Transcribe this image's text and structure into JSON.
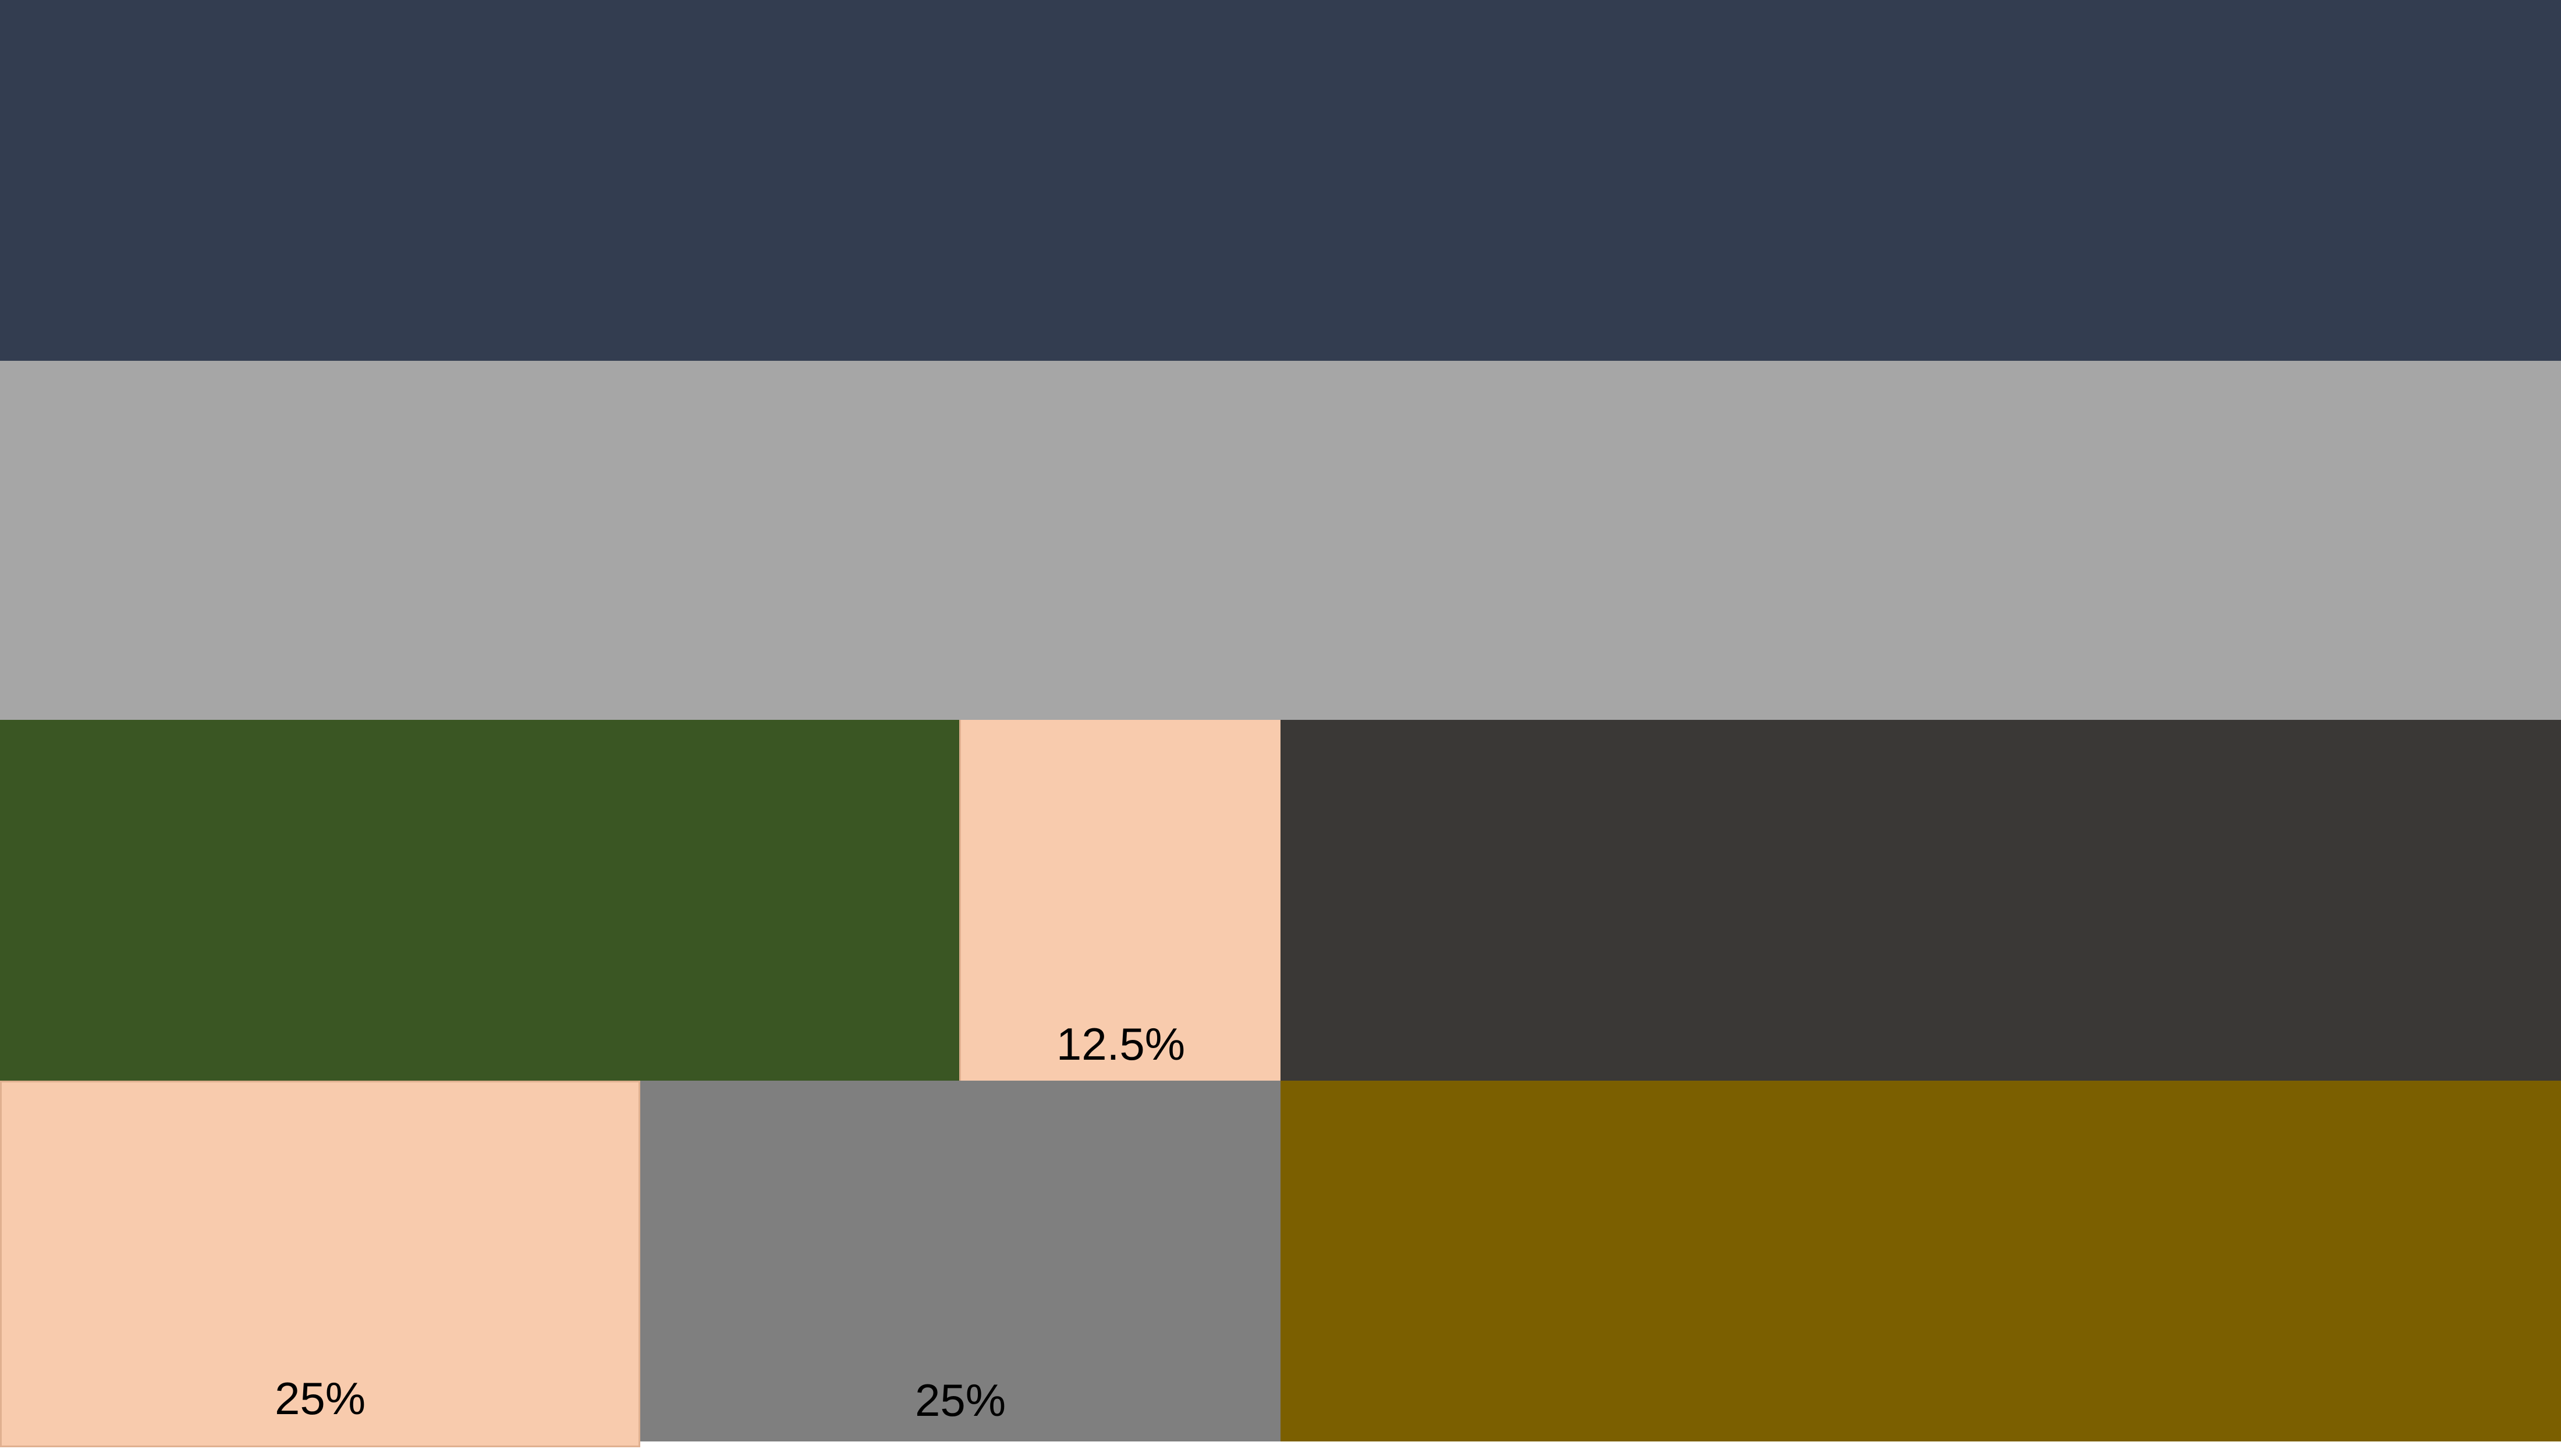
{
  "blocks": {
    "row1": {
      "color": "#333d50",
      "label": ""
    },
    "row2": {
      "color": "#a6a6a6",
      "label": ""
    },
    "green": {
      "color": "#3a5623",
      "label": ""
    },
    "peach_small": {
      "color": "#f8cbad",
      "label": "12.5%"
    },
    "charcoal": {
      "color": "#3a3836",
      "label": ""
    },
    "peach_big": {
      "color": "#f8cbad",
      "label": "25%"
    },
    "gray": {
      "color": "#7f7f7f",
      "label": "25%"
    },
    "olive": {
      "color": "#7b5f00",
      "label": ""
    }
  }
}
